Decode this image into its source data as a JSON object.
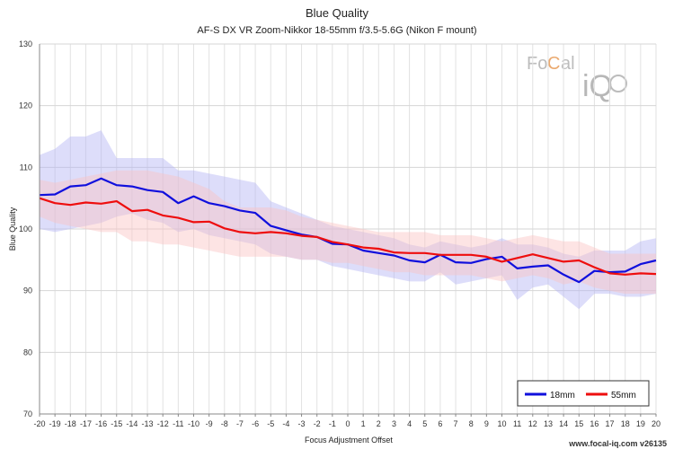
{
  "chart_data": {
    "type": "line",
    "title": "Blue Quality",
    "subtitle": "AF-S DX VR Zoom-Nikkor 18-55mm f/3.5-5.6G (Nikon F mount)",
    "xlabel": "Focus Adjustment Offset",
    "ylabel": "Blue Quality",
    "xlim": [
      -20,
      20
    ],
    "ylim": [
      70,
      130
    ],
    "yticks": [
      70,
      80,
      90,
      100,
      110,
      120,
      130
    ],
    "grid": true,
    "legend_position": "bottom-right",
    "x": [
      -20,
      -19,
      -18,
      -17,
      -16,
      -15,
      -14,
      -13,
      -12,
      -11,
      -10,
      -9,
      -8,
      -7,
      -6,
      -5,
      -4,
      -3,
      -2,
      -1,
      0,
      1,
      2,
      3,
      4,
      5,
      6,
      7,
      8,
      9,
      10,
      11,
      12,
      13,
      14,
      15,
      16,
      17,
      18,
      19,
      20
    ],
    "series": [
      {
        "name": "18mm",
        "color": "#1010dd",
        "band_color": "#b3b3f5",
        "values": [
          105.5,
          105.6,
          106.9,
          107.1,
          108.2,
          107.1,
          106.9,
          106.3,
          106.0,
          104.2,
          105.3,
          104.2,
          103.7,
          103.0,
          102.6,
          100.5,
          99.8,
          99.1,
          98.7,
          97.6,
          97.5,
          96.5,
          96.1,
          95.7,
          94.9,
          94.6,
          95.8,
          94.6,
          94.5,
          95.1,
          95.5,
          93.6,
          93.9,
          94.1,
          92.6,
          91.4,
          93.2,
          93.0,
          93.1,
          94.3,
          94.9
        ],
        "upper": [
          112.0,
          113.0,
          115.0,
          115.0,
          116.0,
          111.5,
          111.5,
          111.5,
          111.5,
          109.5,
          109.5,
          109.0,
          108.5,
          108.0,
          107.5,
          104.5,
          103.5,
          102.5,
          101.5,
          100.5,
          100.0,
          99.5,
          99.0,
          98.5,
          97.5,
          97.0,
          98.0,
          97.5,
          97.0,
          97.5,
          98.5,
          97.5,
          97.5,
          97.0,
          96.0,
          95.5,
          96.5,
          96.5,
          96.5,
          98.0,
          98.5
        ],
        "lower": [
          100.0,
          99.5,
          100.0,
          100.5,
          101.0,
          102.0,
          102.5,
          101.5,
          101.0,
          99.5,
          100.0,
          99.0,
          98.5,
          98.0,
          97.5,
          96.0,
          95.5,
          95.0,
          95.0,
          94.0,
          93.5,
          93.0,
          92.5,
          92.0,
          91.5,
          91.5,
          93.0,
          91.0,
          91.5,
          92.0,
          92.5,
          88.5,
          90.5,
          91.0,
          89.0,
          87.0,
          89.5,
          89.5,
          89.0,
          89.0,
          89.5
        ]
      },
      {
        "name": "55mm",
        "color": "#ee0e0e",
        "band_color": "#fbc4c4",
        "values": [
          105.0,
          104.2,
          103.9,
          104.3,
          104.1,
          104.5,
          102.9,
          103.1,
          102.2,
          101.8,
          101.1,
          101.2,
          100.1,
          99.5,
          99.3,
          99.5,
          99.3,
          98.9,
          98.7,
          97.9,
          97.5,
          97.0,
          96.8,
          96.2,
          96.1,
          96.1,
          95.8,
          95.8,
          95.8,
          95.5,
          94.7,
          95.3,
          95.9,
          95.3,
          94.7,
          94.9,
          93.8,
          92.8,
          92.6,
          92.8,
          92.7
        ],
        "upper": [
          108.0,
          107.5,
          108.0,
          108.5,
          109.0,
          109.5,
          109.5,
          109.5,
          109.0,
          108.5,
          107.5,
          106.5,
          104.5,
          103.5,
          103.5,
          103.5,
          103.0,
          102.0,
          101.5,
          101.0,
          100.5,
          100.0,
          99.5,
          99.5,
          99.5,
          99.5,
          99.0,
          99.0,
          99.0,
          98.5,
          98.0,
          98.5,
          99.0,
          98.5,
          98.0,
          98.0,
          97.0,
          96.0,
          96.0,
          96.0,
          96.0
        ],
        "lower": [
          102.0,
          101.0,
          100.5,
          100.0,
          99.5,
          99.5,
          98.0,
          98.0,
          97.5,
          97.5,
          97.0,
          96.5,
          96.0,
          95.5,
          95.5,
          95.5,
          95.5,
          95.0,
          95.0,
          94.5,
          94.5,
          94.0,
          93.5,
          93.0,
          93.0,
          92.5,
          92.5,
          92.5,
          92.5,
          92.0,
          91.5,
          92.0,
          92.5,
          92.0,
          91.0,
          91.5,
          90.5,
          90.0,
          89.5,
          89.5,
          89.5
        ]
      }
    ]
  },
  "watermark": {
    "left": "Fo",
    "mid": "C",
    "right": "al",
    "big": "iQ"
  },
  "footer": "www.focal-iq.com  v26135"
}
